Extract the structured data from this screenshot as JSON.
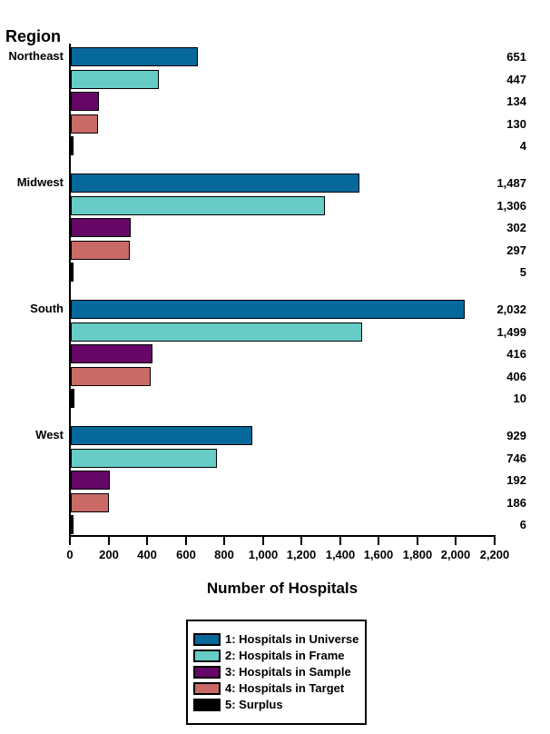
{
  "chart_data": {
    "type": "bar",
    "orientation": "horizontal",
    "group_axis_title": "Region",
    "xlabel": "Number of Hospitals",
    "xlim": [
      0,
      2200
    ],
    "xtick_values": [
      0,
      200,
      400,
      600,
      800,
      1000,
      1200,
      1400,
      1600,
      1800,
      2000,
      2200
    ],
    "xtick_labels": [
      "0",
      "200",
      "400",
      "600",
      "800",
      "1,000",
      "1,200",
      "1,400",
      "1,600",
      "1,800",
      "2,000",
      "2,200"
    ],
    "grid": false,
    "bar_border_color": "#000000",
    "legend_position": "bottom-center",
    "series": [
      {
        "name": "1: Hospitals in Universe",
        "color": "#06689B"
      },
      {
        "name": "2: Hospitals in Frame",
        "color": "#66CCC5"
      },
      {
        "name": "3: Hospitals in Sample",
        "color": "#660767"
      },
      {
        "name": "4: Hospitals in Target",
        "color": "#C96A66"
      },
      {
        "name": "5: Surplus",
        "color": "#000000"
      }
    ],
    "groups": [
      {
        "label": "Northeast",
        "values": [
          651,
          447,
          134,
          130,
          4
        ],
        "display": [
          "651",
          "447",
          "134",
          "130",
          "4"
        ]
      },
      {
        "label": "Midwest",
        "values": [
          1487,
          1306,
          302,
          297,
          5
        ],
        "display": [
          "1,487",
          "1,306",
          "302",
          "297",
          "5"
        ]
      },
      {
        "label": "South",
        "values": [
          2032,
          1499,
          416,
          406,
          10
        ],
        "display": [
          "2,032",
          "1,499",
          "416",
          "406",
          "10"
        ]
      },
      {
        "label": "West",
        "values": [
          929,
          746,
          192,
          186,
          6
        ],
        "display": [
          "929",
          "746",
          "192",
          "186",
          "6"
        ]
      }
    ]
  }
}
